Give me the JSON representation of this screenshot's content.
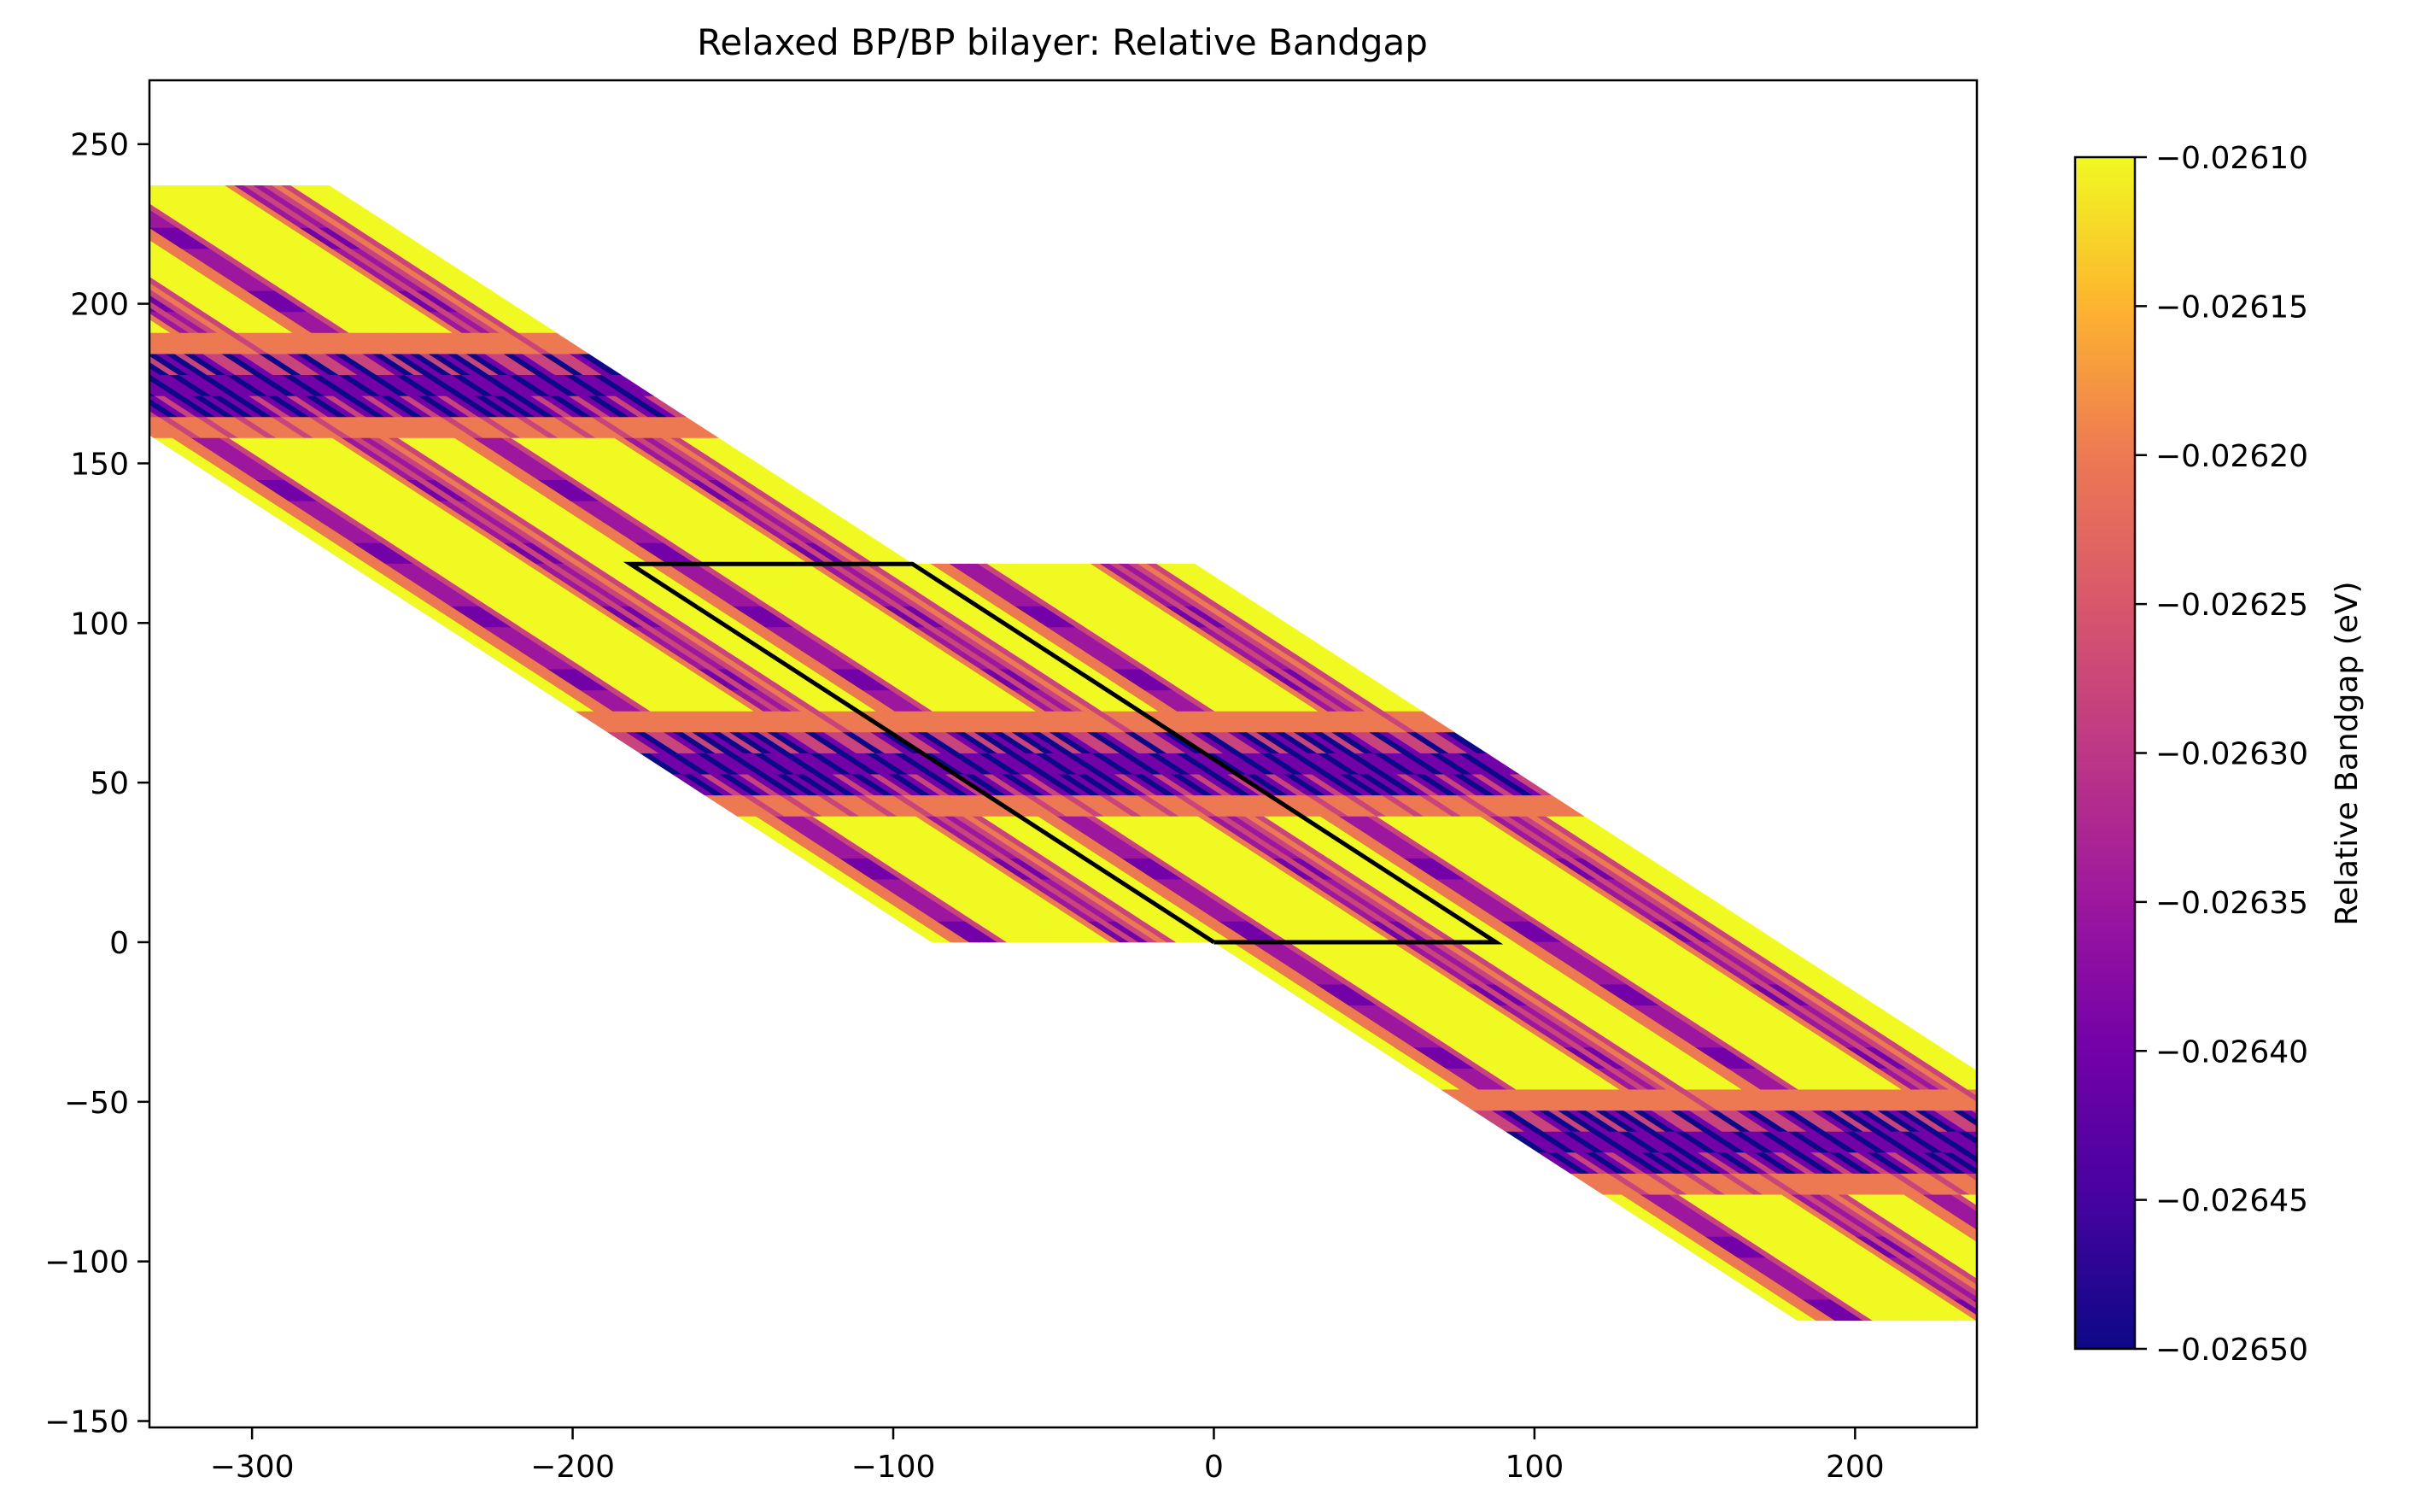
{
  "chart_data": {
    "type": "heatmap",
    "title": "Relaxed BP/BP bilayer: Relative Bandgap",
    "xlabel": "",
    "ylabel": "",
    "colorbar_label": "Relative Bandgap (eV)",
    "xlim": [
      -332,
      238
    ],
    "ylim": [
      -152,
      270
    ],
    "x_ticks": [
      -300,
      -200,
      -100,
      0,
      100,
      200
    ],
    "y_ticks": [
      -150,
      -100,
      -50,
      0,
      50,
      100,
      150,
      200,
      250
    ],
    "x_tick_labels": [
      "−300",
      "−200",
      "−100",
      "0",
      "100",
      "200"
    ],
    "y_tick_labels": [
      "−150",
      "−100",
      "−50",
      "0",
      "50",
      "100",
      "150",
      "200",
      "250"
    ],
    "colorbar_range": [
      -0.0265,
      -0.0261
    ],
    "colorbar_ticks": [
      -0.0261,
      -0.02615,
      -0.0262,
      -0.02625,
      -0.0263,
      -0.02635,
      -0.0264,
      -0.02645,
      -0.0265
    ],
    "colorbar_tick_labels": [
      "−0.02610",
      "−0.02615",
      "−0.02620",
      "−0.02625",
      "−0.02630",
      "−0.02635",
      "−0.02640",
      "−0.02645",
      "−0.02650"
    ],
    "colormap": "plasma",
    "grid": false,
    "moire_lattice": {
      "a1": [
        88,
        0
      ],
      "a2": [
        -182,
        118.5
      ]
    },
    "supercell_offsets": [
      [
        -1,
        1
      ],
      [
        0,
        1
      ],
      [
        -1,
        0
      ],
      [
        0,
        0
      ],
      [
        1,
        0
      ],
      [
        0,
        -1
      ],
      [
        1,
        -1
      ]
    ],
    "unit_cell_outline": {
      "x": [
        0,
        88,
        -94,
        -182,
        0
      ],
      "y": [
        0,
        0,
        118.5,
        118.5,
        0
      ]
    },
    "value_summary": {
      "background": -0.0261,
      "stripe_edge": -0.0262,
      "stripe_mid": -0.02628,
      "stripe_core": -0.02635,
      "band_core": -0.0264,
      "band_minimum": -0.0265
    },
    "band_center_fraction": 0.47,
    "stripe_center_fractions": [
      0.18,
      0.74
    ]
  }
}
